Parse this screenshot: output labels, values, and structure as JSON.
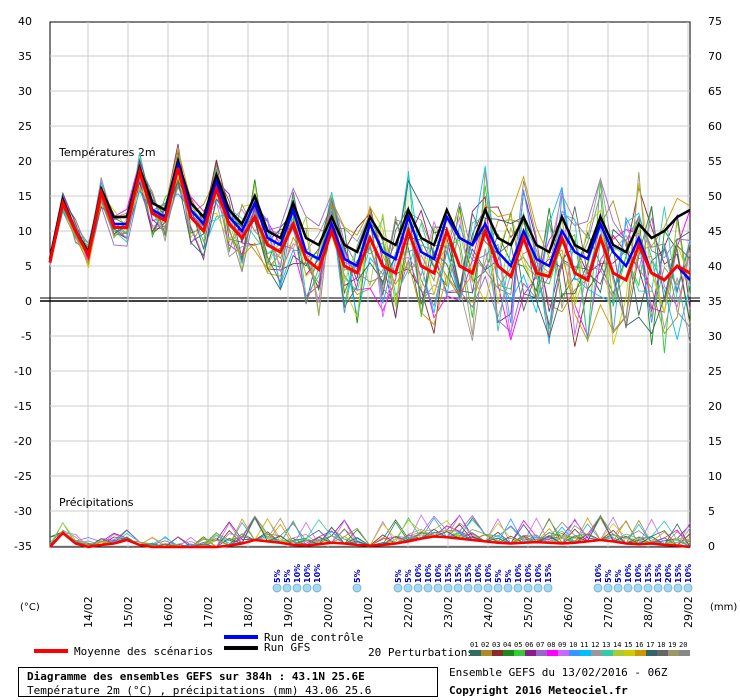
{
  "chart_data": {
    "type": "line",
    "title": "Diagramme des ensembles GEFS sur 384h : 43.1N 25.6E",
    "subtitle": "Température 2m (°C) , précipitations (mm) 43.06 25.6",
    "run_info": "Ensemble GEFS du 13/02/2016 - 06Z",
    "copyright": "Copyright 2016 Meteociel.fr",
    "left_unit": "(°C)",
    "right_unit": "(mm)",
    "temp_label": "Températures 2m",
    "precip_label": "Précipitations",
    "left_ticks": [
      40,
      35,
      30,
      25,
      20,
      15,
      10,
      5,
      0,
      -5,
      -10,
      -15,
      -20,
      -25,
      -30,
      -35
    ],
    "right_ticks": [
      75,
      70,
      65,
      60,
      55,
      50,
      45,
      40,
      35,
      30,
      25,
      20,
      15,
      10,
      5,
      0
    ],
    "x_dates": [
      "14/02",
      "15/02",
      "16/02",
      "17/02",
      "18/02",
      "19/02",
      "20/02",
      "21/02",
      "22/02",
      "23/02",
      "24/02",
      "25/02",
      "26/02",
      "27/02",
      "28/02",
      "29/02"
    ],
    "snow_probs": [
      "5%",
      "5%",
      "10%",
      "10%",
      "10%",
      "5%",
      "5%",
      "5%",
      "10%",
      "10%",
      "10%",
      "15%",
      "15%",
      "15%",
      "10%",
      "10%",
      "5%",
      "5%",
      "10%",
      "10%",
      "10%",
      "15%",
      "10%",
      "5%",
      "5%",
      "10%",
      "10%",
      "15%",
      "15%",
      "20%",
      "15%",
      "10%"
    ],
    "legend": {
      "mean": "Moyenne des scénarios",
      "control": "Run de contrôle",
      "gfs": "Run GFS",
      "perturbations": "20 Perturbations",
      "pert_numbers": [
        "01",
        "02",
        "03",
        "04",
        "05",
        "06",
        "07",
        "08",
        "09",
        "10",
        "11",
        "12",
        "13",
        "14",
        "15",
        "16",
        "17",
        "18",
        "19",
        "20"
      ]
    },
    "series": [
      {
        "name": "Run GFS",
        "color": "#000000",
        "temp": [
          6,
          14.5,
          10,
          7,
          16,
          12,
          12,
          19,
          14,
          13,
          20,
          14,
          12,
          18,
          13,
          11,
          15,
          10,
          9,
          14,
          9,
          8,
          12,
          8,
          7,
          12,
          9,
          8,
          13,
          9,
          8,
          13,
          9,
          8,
          13,
          9,
          8,
          12,
          8,
          7,
          12,
          8,
          7,
          12,
          8,
          7,
          11,
          9,
          10,
          12,
          13
        ]
      },
      {
        "name": "Run de contrôle",
        "color": "#0000ff",
        "temp": [
          5.5,
          14,
          10,
          6.5,
          15.5,
          11,
          11,
          18.5,
          13,
          12,
          19.5,
          13,
          11,
          17,
          12,
          10,
          14,
          9,
          8,
          13,
          7,
          6,
          11,
          6,
          5,
          11,
          7,
          6,
          12,
          7,
          6,
          12,
          9,
          8,
          11,
          7,
          5,
          10,
          6,
          5,
          10,
          7,
          6,
          11,
          7,
          5,
          9,
          4,
          3,
          5,
          3
        ]
      },
      {
        "name": "Moyenne des scénarios",
        "color": "#ff0000",
        "temp": [
          5.5,
          14,
          10,
          6.5,
          15.5,
          10.5,
          10.5,
          18.5,
          12.5,
          11.5,
          19,
          12,
          10,
          16,
          11,
          9,
          12,
          8,
          7,
          11,
          6,
          4.5,
          10,
          5,
          4,
          9,
          5,
          4,
          10,
          5,
          4,
          10,
          5,
          4,
          10,
          5,
          3.5,
          9,
          4,
          3.5,
          9,
          4,
          3,
          9,
          4,
          3,
          8,
          4,
          3,
          5,
          4
        ]
      }
    ],
    "precip_mean": [
      0,
      2,
      0.5,
      0,
      0.3,
      0.5,
      1,
      0.3,
      0,
      0,
      0,
      0,
      0,
      0,
      0.2,
      0.5,
      1,
      0.8,
      0.6,
      0.3,
      0.2,
      0.4,
      0.6,
      0.5,
      0.3,
      0.2,
      0.3,
      0.5,
      0.8,
      1.2,
      1.5,
      1.4,
      1.2,
      1,
      0.8,
      0.6,
      0.5,
      0.6,
      0.7,
      0.6,
      0.5,
      0.6,
      0.8,
      1,
      0.8,
      0.5,
      0.4,
      0.5,
      0.3,
      0.2,
      0
    ]
  }
}
